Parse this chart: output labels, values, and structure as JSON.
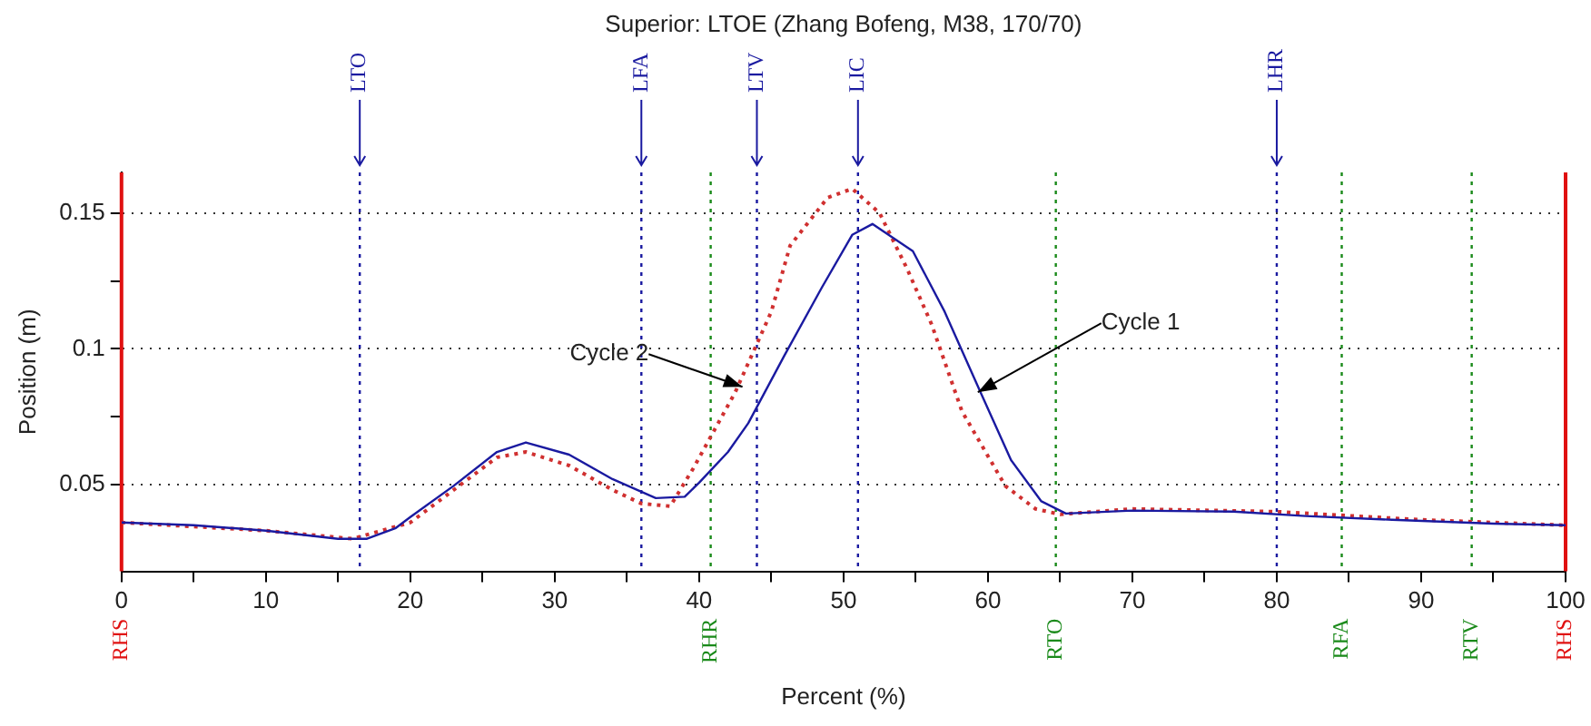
{
  "chart_data": {
    "type": "line",
    "title": "Superior: LTOE (Zhang Bofeng, M38, 170/70)",
    "xlabel": "Percent (%)",
    "ylabel": "Position (m)",
    "xlim": [
      0,
      100
    ],
    "ylim": [
      0.018,
      0.165
    ],
    "xticks": [
      0,
      {
        "value": 5,
        "label": null
      },
      10,
      {
        "value": 15,
        "label": null
      },
      20,
      {
        "value": 25,
        "label": null
      },
      30,
      {
        "value": 35,
        "label": null
      },
      40,
      {
        "value": 45,
        "label": null
      },
      50,
      {
        "value": 55,
        "label": null
      },
      60,
      {
        "value": 65,
        "label": null
      },
      70,
      {
        "value": 75,
        "label": null
      },
      80,
      {
        "value": 85,
        "label": null
      },
      90,
      {
        "value": 95,
        "label": null
      },
      100
    ],
    "yticks": [
      0.05,
      {
        "value": 0.075,
        "label": null
      },
      0.1,
      {
        "value": 0.125,
        "label": null
      },
      0.15
    ],
    "grid": "y",
    "legend": false,
    "series": [
      {
        "color": "#1a1aa0",
        "line_style": "solid",
        "x": [
          0,
          5,
          10,
          15,
          17,
          19,
          20,
          23,
          26,
          28,
          31,
          34,
          37,
          39,
          40,
          42,
          43.4,
          45.9,
          48.5,
          50.6,
          52,
          54.8,
          57,
          59.5,
          61.6,
          63.7,
          65.4,
          70,
          77,
          82,
          88,
          95,
          100
        ],
        "values": [
          0.036,
          0.035,
          0.033,
          0.03,
          0.03,
          0.034,
          0.038,
          0.0495,
          0.062,
          0.0655,
          0.061,
          0.052,
          0.045,
          0.0455,
          0.0507,
          0.062,
          0.0726,
          0.0975,
          0.1226,
          0.142,
          0.146,
          0.136,
          0.1137,
          0.0838,
          0.059,
          0.0438,
          0.0393,
          0.0404,
          0.04,
          0.0384,
          0.037,
          0.0356,
          0.035
        ]
      },
      {
        "color": "#d03030",
        "line_style": "dotted",
        "x": [
          0,
          10,
          16,
          20,
          23,
          26,
          28,
          31,
          34,
          36,
          38,
          39.6,
          42.5,
          45,
          46.3,
          48.9,
          50.6,
          52.5,
          54.4,
          56.1,
          58.2,
          61.2,
          63.3,
          65,
          70,
          80,
          90,
          100
        ],
        "values": [
          0.036,
          0.033,
          0.03,
          0.036,
          0.048,
          0.06,
          0.062,
          0.057,
          0.048,
          0.043,
          0.042,
          0.056,
          0.084,
          0.1137,
          0.138,
          0.1557,
          0.159,
          0.15,
          0.1295,
          0.109,
          0.077,
          0.0495,
          0.041,
          0.039,
          0.041,
          0.04,
          0.037,
          0.035
        ]
      }
    ],
    "ref_lines": [
      {
        "axis": "x",
        "value": 16.5,
        "label": "LTO",
        "color": "#1a1aa0",
        "line_style": "dotted"
      },
      {
        "axis": "x",
        "value": 36,
        "label": "LFA",
        "color": "#1a1aa0",
        "line_style": "dotted"
      },
      {
        "axis": "x",
        "value": 44,
        "label": "LTV",
        "color": "#1a1aa0",
        "line_style": "dotted"
      },
      {
        "axis": "x",
        "value": 51,
        "label": "LIC",
        "color": "#1a1aa0",
        "line_style": "dotted"
      },
      {
        "axis": "x",
        "value": 80,
        "label": "LHR",
        "color": "#1a1aa0",
        "line_style": "dotted"
      },
      {
        "axis": "x",
        "value": 0,
        "label": "RHS",
        "color": "#e01010",
        "line_style": "solid"
      },
      {
        "axis": "x",
        "value": 40.8,
        "label": "RHR",
        "color": "#1a8a1a",
        "line_style": "dotted"
      },
      {
        "axis": "x",
        "value": 64.7,
        "label": "RTO",
        "color": "#1a8a1a",
        "line_style": "dotted"
      },
      {
        "axis": "x",
        "value": 84.5,
        "label": "RFA",
        "color": "#1a8a1a",
        "line_style": "dotted"
      },
      {
        "axis": "x",
        "value": 93.5,
        "label": "RTV",
        "color": "#1a8a1a",
        "line_style": "dotted"
      },
      {
        "axis": "x",
        "value": 100,
        "label": "RHS",
        "color": "#e01010",
        "line_style": "solid"
      }
    ],
    "annotations": [
      {
        "text": "Cycle 2",
        "x": 43,
        "y": 0.086
      },
      {
        "text": "Cycle 1",
        "x": 59.3,
        "y": 0.084
      }
    ]
  }
}
